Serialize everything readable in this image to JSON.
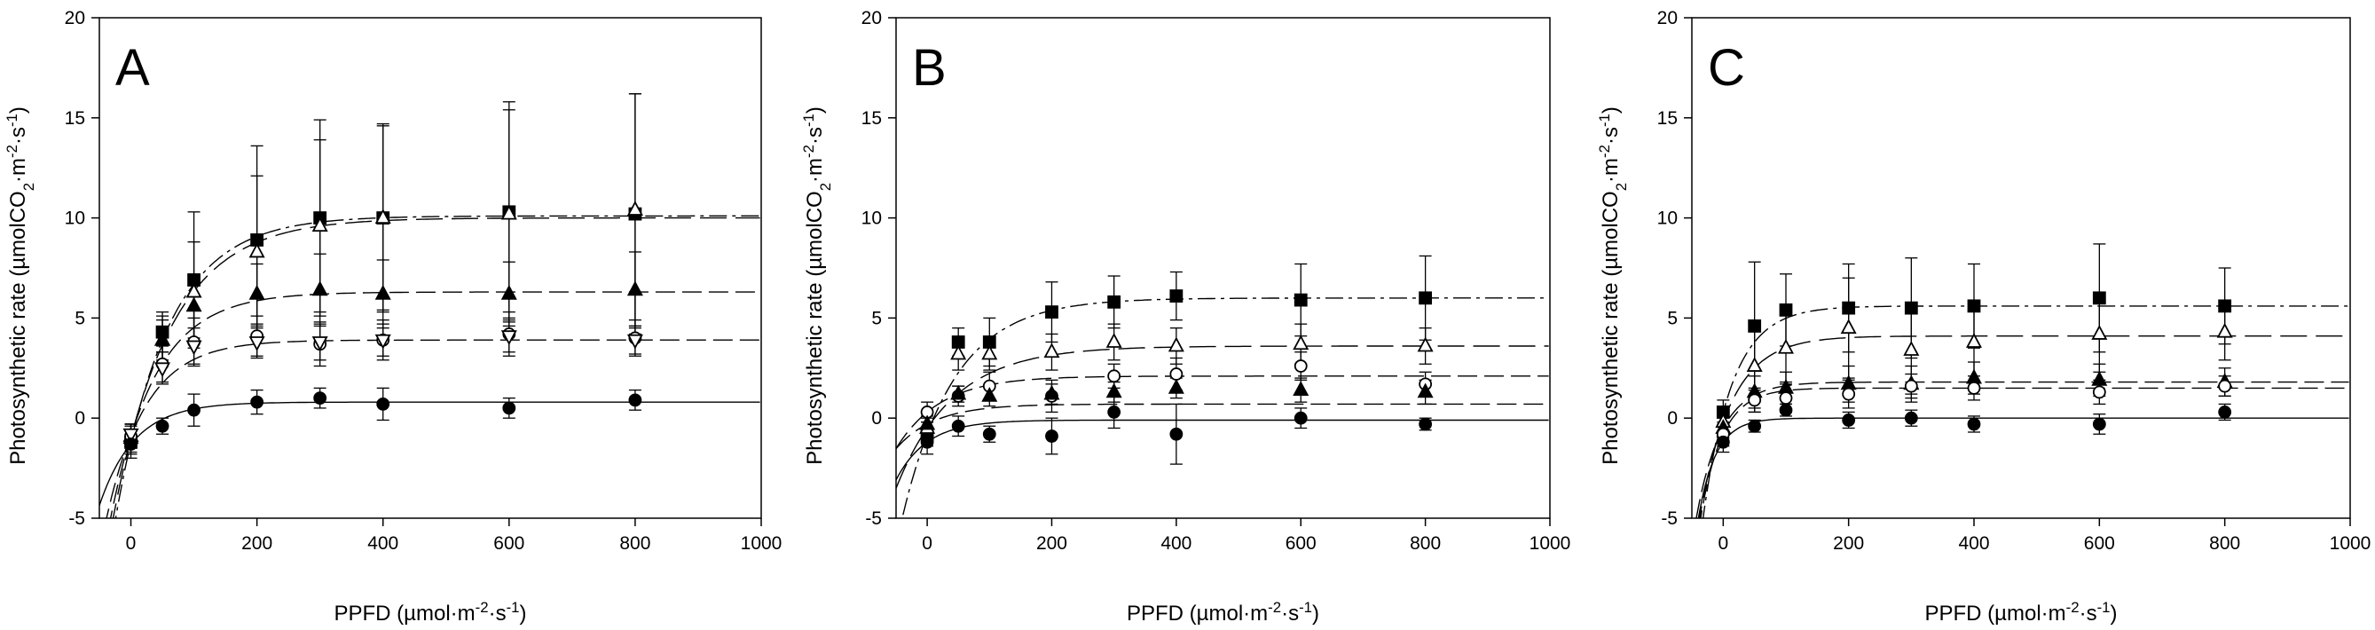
{
  "chart_data": [
    {
      "type": "scatter",
      "panel": "A",
      "xlabel": "PPFD (µmol·m^-2·s^-1)",
      "ylabel": "Photosynthetic rate (µmolCO2·m^-2·s^-1)",
      "xlim": [
        -50,
        1000
      ],
      "ylim": [
        -5,
        20
      ],
      "xticks": [
        0,
        200,
        400,
        600,
        800,
        1000
      ],
      "yticks": [
        -5,
        0,
        5,
        10,
        15,
        20
      ],
      "x": [
        0,
        50,
        100,
        200,
        300,
        400,
        600,
        800
      ],
      "series": [
        {
          "name": "filled square",
          "marker": "square-filled",
          "line": "dash-dot",
          "asymptote": 10.1,
          "values": [
            -1.2,
            4.3,
            6.9,
            8.9,
            10.0,
            10.0,
            10.3,
            10.2
          ],
          "errors": [
            0.8,
            1.0,
            3.4,
            4.7,
            4.9,
            4.7,
            5.5,
            6.0
          ]
        },
        {
          "name": "open triangle",
          "marker": "triangle-open",
          "line": "long-dash",
          "asymptote": 10.0,
          "values": [
            -1.0,
            3.9,
            6.3,
            8.3,
            9.6,
            10.0,
            10.2,
            10.4
          ],
          "errors": [
            0.7,
            1.2,
            2.5,
            3.8,
            4.3,
            4.6,
            5.2,
            5.8
          ]
        },
        {
          "name": "filled triangle",
          "marker": "triangle-filled",
          "line": "dash",
          "asymptote": 6.3,
          "values": [
            -0.9,
            3.9,
            5.6,
            6.2,
            6.4,
            6.2,
            6.2,
            6.4
          ],
          "errors": [
            0.6,
            1.0,
            1.6,
            1.5,
            1.8,
            1.7,
            1.6,
            1.9
          ]
        },
        {
          "name": "open circle",
          "marker": "circle-open",
          "line": "dash",
          "asymptote": 3.9,
          "values": [
            -0.9,
            2.7,
            3.8,
            4.1,
            3.7,
            3.9,
            4.2,
            4.0
          ],
          "errors": [
            0.6,
            0.9,
            1.2,
            1.0,
            1.1,
            1.0,
            1.1,
            0.9
          ]
        },
        {
          "name": "open triangle down",
          "marker": "triangle-down-open",
          "line": "none",
          "asymptote": null,
          "values": [
            -0.8,
            2.5,
            3.6,
            3.8,
            3.8,
            3.9,
            4.1,
            3.9
          ],
          "errors": [
            0.5,
            0.8,
            0.9,
            0.8,
            0.9,
            0.8,
            0.8,
            0.7
          ]
        },
        {
          "name": "filled circle",
          "marker": "circle-filled",
          "line": "solid",
          "asymptote": 0.8,
          "values": [
            -1.3,
            -0.4,
            0.4,
            0.8,
            1.0,
            0.7,
            0.5,
            0.9
          ],
          "errors": [
            0.5,
            0.4,
            0.8,
            0.6,
            0.5,
            0.8,
            0.5,
            0.5
          ]
        }
      ]
    },
    {
      "type": "scatter",
      "panel": "B",
      "xlabel": "PPFD (µmol·m^-2·s^-1)",
      "ylabel": "Photosynthetic rate (µmolCO2·m^-2·s^-1)",
      "xlim": [
        -50,
        1000
      ],
      "ylim": [
        -5,
        20
      ],
      "xticks": [
        0,
        200,
        400,
        600,
        800,
        1000
      ],
      "yticks": [
        -5,
        0,
        5,
        10,
        15,
        20
      ],
      "x": [
        0,
        50,
        100,
        200,
        300,
        400,
        600,
        800
      ],
      "series": [
        {
          "name": "filled square",
          "marker": "square-filled",
          "line": "dash-dot",
          "asymptote": 6.0,
          "values": [
            -0.8,
            3.8,
            3.8,
            5.3,
            5.8,
            6.1,
            5.9,
            6.0
          ],
          "errors": [
            0.6,
            0.7,
            1.2,
            1.5,
            1.3,
            1.2,
            1.8,
            2.1
          ]
        },
        {
          "name": "open triangle",
          "marker": "triangle-open",
          "line": "long-dash",
          "asymptote": 3.6,
          "values": [
            -0.5,
            3.2,
            3.2,
            3.3,
            3.8,
            3.6,
            3.7,
            3.6
          ],
          "errors": [
            0.5,
            0.8,
            0.8,
            0.9,
            0.9,
            0.9,
            1.0,
            0.9
          ]
        },
        {
          "name": "open circle",
          "marker": "circle-open",
          "line": "dash",
          "asymptote": 2.1,
          "values": [
            0.3,
            1.1,
            1.6,
            1.1,
            2.1,
            2.2,
            2.6,
            1.7
          ],
          "errors": [
            0.5,
            0.5,
            0.7,
            0.8,
            0.6,
            0.8,
            0.7,
            0.6
          ]
        },
        {
          "name": "filled triangle",
          "marker": "triangle-filled",
          "line": "dash",
          "asymptote": 0.7,
          "values": [
            -0.3,
            1.2,
            1.1,
            1.2,
            1.3,
            1.5,
            1.4,
            1.3
          ],
          "errors": [
            0.4,
            0.4,
            0.5,
            0.5,
            0.5,
            0.5,
            0.6,
            0.6
          ]
        },
        {
          "name": "filled circle",
          "marker": "circle-filled",
          "line": "solid",
          "asymptote": -0.1,
          "values": [
            -1.2,
            -0.4,
            -0.8,
            -0.9,
            0.3,
            -0.8,
            0.0,
            -0.3
          ],
          "errors": [
            0.6,
            0.5,
            0.4,
            0.9,
            0.8,
            1.5,
            0.5,
            0.3
          ]
        }
      ]
    },
    {
      "type": "scatter",
      "panel": "C",
      "xlabel": "PPFD (µmol·m^-2·s^-1)",
      "ylabel": "Photosynthetic rate (µmolCO2·m^-2·s^-1)",
      "xlim": [
        -50,
        1000
      ],
      "ylim": [
        -5,
        20
      ],
      "xticks": [
        0,
        200,
        400,
        600,
        800,
        1000
      ],
      "yticks": [
        -5,
        0,
        5,
        10,
        15,
        20
      ],
      "x": [
        0,
        50,
        100,
        200,
        300,
        400,
        600,
        800
      ],
      "series": [
        {
          "name": "filled square",
          "marker": "square-filled",
          "line": "dash-dot",
          "asymptote": 5.6,
          "values": [
            0.3,
            4.6,
            5.4,
            5.5,
            5.5,
            5.6,
            6.0,
            5.6
          ],
          "errors": [
            0.6,
            3.2,
            1.8,
            2.2,
            2.5,
            2.1,
            2.7,
            1.9
          ]
        },
        {
          "name": "open triangle",
          "marker": "triangle-open",
          "line": "long-dash",
          "asymptote": 4.1,
          "values": [
            -0.2,
            2.6,
            3.5,
            4.5,
            3.4,
            3.8,
            4.2,
            4.3
          ],
          "errors": [
            0.6,
            2.3,
            1.7,
            2.5,
            2.2,
            2.0,
            1.9,
            1.4
          ]
        },
        {
          "name": "filled triangle",
          "marker": "triangle-filled",
          "line": "dash",
          "asymptote": 1.8,
          "values": [
            -0.5,
            1.3,
            1.5,
            1.7,
            1.7,
            2.0,
            1.9,
            1.8
          ],
          "errors": [
            0.5,
            0.8,
            0.8,
            0.9,
            0.9,
            0.8,
            0.8,
            0.7
          ]
        },
        {
          "name": "open circle",
          "marker": "circle-open",
          "line": "dash",
          "asymptote": 1.5,
          "values": [
            -0.8,
            0.9,
            1.0,
            1.2,
            1.6,
            1.5,
            1.3,
            1.6
          ],
          "errors": [
            0.6,
            0.6,
            0.7,
            0.7,
            0.6,
            0.6,
            0.6,
            0.5
          ]
        },
        {
          "name": "filled circle",
          "marker": "circle-filled",
          "line": "solid",
          "asymptote": 0.0,
          "values": [
            -1.2,
            -0.4,
            0.4,
            -0.1,
            0.0,
            -0.3,
            -0.3,
            0.3
          ],
          "errors": [
            0.5,
            0.3,
            0.3,
            0.4,
            0.4,
            0.4,
            0.5,
            0.4
          ]
        }
      ]
    }
  ]
}
